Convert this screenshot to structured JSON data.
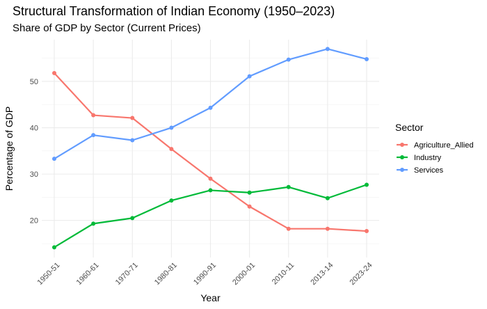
{
  "chart_data": {
    "type": "line",
    "title": "Structural Transformation of Indian Economy (1950–2023)",
    "subtitle": "Share of GDP by Sector (Current Prices)",
    "xlabel": "Year",
    "ylabel": "Percentage of GDP",
    "categories": [
      "1950-51",
      "1960-61",
      "1970-71",
      "1980-81",
      "1990-91",
      "2000-01",
      "2010-11",
      "2013-14",
      "2023-24"
    ],
    "ylim": [
      12,
      59
    ],
    "yticks": [
      20,
      30,
      40,
      50
    ],
    "grid": true,
    "legend_title": "Sector",
    "legend_position": "right",
    "series": [
      {
        "name": "Agriculture_Allied",
        "color": "#F8766D",
        "values": [
          51.8,
          42.7,
          42.1,
          35.4,
          29.0,
          23.0,
          18.2,
          18.2,
          17.7
        ]
      },
      {
        "name": "Industry",
        "color": "#00BA38",
        "values": [
          14.2,
          19.3,
          20.5,
          24.3,
          26.5,
          26.0,
          27.2,
          24.8,
          27.7
        ]
      },
      {
        "name": "Services",
        "color": "#619CFF",
        "values": [
          33.3,
          38.4,
          37.3,
          40.0,
          44.3,
          51.1,
          54.7,
          57.0,
          54.8
        ]
      }
    ]
  }
}
